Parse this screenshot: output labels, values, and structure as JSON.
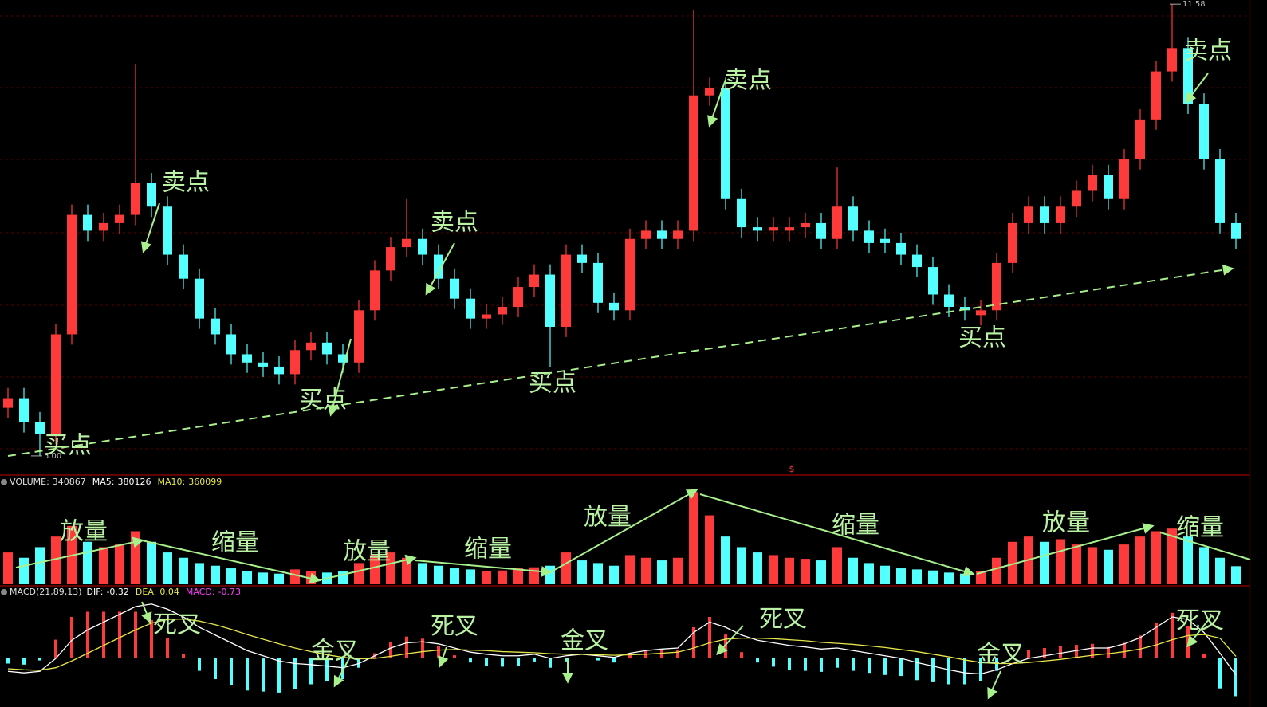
{
  "chart_data": [
    {
      "type": "candlestick",
      "ylim": [
        4.79,
        11.64
      ],
      "yticks": [
        {
          "value": 5,
          "label": "5.00"
        },
        11.58
      ],
      "up_color": "#ff3a3a",
      "down_color": "#54ffff",
      "open": [
        5.7,
        5.84,
        5.49,
        5.32,
        6.77,
        8.51,
        8.28,
        8.39,
        8.51,
        8.97,
        8.63,
        7.93,
        7.58,
        7.0,
        6.77,
        6.48,
        6.36,
        6.3,
        6.19,
        6.54,
        6.65,
        6.48,
        6.36,
        7.12,
        7.7,
        8.04,
        8.16,
        7.93,
        7.58,
        7.29,
        7.0,
        7.06,
        7.17,
        7.46,
        7.64,
        6.88,
        7.93,
        7.81,
        7.23,
        7.12,
        8.16,
        8.28,
        8.16,
        8.28,
        10.25,
        10.36,
        8.74,
        8.33,
        8.28,
        8.28,
        8.33,
        8.39,
        8.16,
        8.63,
        8.28,
        8.16,
        8.1,
        7.93,
        7.75,
        7.35,
        7.17,
        7.05,
        7.12,
        7.81,
        8.39,
        8.63,
        8.39,
        8.63,
        8.86,
        9.09,
        8.74,
        9.32,
        9.9,
        10.6,
        10.94,
        10.13,
        9.32,
        8.39
      ],
      "high": [
        5.99,
        5.99,
        5.64,
        6.92,
        8.66,
        8.66,
        8.54,
        8.66,
        10.71,
        9.12,
        8.78,
        8.08,
        7.73,
        7.15,
        6.92,
        6.63,
        6.51,
        6.45,
        6.69,
        6.8,
        6.8,
        6.63,
        7.27,
        7.85,
        8.19,
        8.74,
        8.31,
        8.08,
        7.73,
        7.44,
        7.21,
        7.32,
        7.61,
        7.79,
        7.79,
        8.08,
        8.08,
        7.96,
        7.38,
        8.31,
        8.43,
        8.43,
        8.43,
        11.49,
        10.51,
        10.51,
        8.89,
        8.48,
        8.48,
        8.48,
        8.54,
        8.54,
        9.2,
        8.78,
        8.43,
        8.31,
        8.25,
        8.08,
        7.9,
        7.5,
        7.32,
        7.27,
        7.96,
        8.54,
        8.78,
        8.78,
        8.78,
        9.01,
        9.24,
        9.24,
        9.47,
        10.05,
        10.75,
        11.58,
        11.09,
        10.28,
        9.47,
        8.54
      ],
      "low": [
        5.55,
        5.34,
        5.0,
        5.17,
        6.62,
        8.13,
        8.13,
        8.24,
        8.36,
        8.48,
        7.78,
        7.43,
        6.85,
        6.62,
        6.33,
        6.21,
        6.15,
        6.04,
        6.04,
        6.39,
        6.33,
        6.21,
        6.21,
        6.97,
        7.55,
        7.89,
        7.78,
        7.43,
        7.14,
        6.85,
        6.85,
        6.91,
        7.02,
        7.31,
        6.3,
        6.73,
        7.66,
        7.08,
        6.97,
        6.97,
        8.01,
        8.01,
        8.01,
        8.13,
        10.1,
        8.59,
        8.18,
        8.13,
        8.13,
        8.13,
        8.18,
        8.01,
        8.01,
        8.13,
        7.95,
        7.95,
        7.78,
        7.6,
        7.2,
        7.02,
        6.97,
        6.9,
        6.97,
        7.66,
        8.24,
        8.24,
        8.24,
        8.48,
        8.71,
        8.59,
        8.59,
        9.17,
        9.75,
        10.45,
        9.98,
        9.17,
        8.24,
        8.01
      ],
      "close": [
        5.84,
        5.49,
        5.32,
        6.77,
        8.51,
        8.28,
        8.39,
        8.51,
        8.97,
        8.63,
        7.93,
        7.58,
        7.0,
        6.77,
        6.48,
        6.36,
        6.3,
        6.19,
        6.54,
        6.65,
        6.48,
        6.36,
        7.12,
        7.7,
        8.04,
        8.16,
        7.93,
        7.58,
        7.29,
        7.0,
        7.06,
        7.17,
        7.46,
        7.64,
        6.88,
        7.93,
        7.81,
        7.23,
        7.12,
        8.16,
        8.28,
        8.16,
        8.28,
        10.25,
        10.36,
        8.74,
        8.33,
        8.28,
        8.33,
        8.33,
        8.39,
        8.16,
        8.63,
        8.28,
        8.1,
        8.1,
        7.93,
        7.75,
        7.35,
        7.17,
        7.12,
        7.12,
        7.81,
        8.39,
        8.63,
        8.39,
        8.63,
        8.86,
        9.09,
        8.74,
        9.32,
        9.9,
        10.6,
        10.94,
        10.13,
        9.32,
        8.39,
        8.16
      ],
      "annotations": [
        "买点",
        "卖点",
        "买点",
        "卖点",
        "买点",
        "卖点",
        "买点",
        "卖点"
      ]
    },
    {
      "type": "bar",
      "ylim": [
        0,
        2000000
      ],
      "indicators": [
        {
          "name": "VOLUME:",
          "value": 340867,
          "color": "#e0e0e0"
        },
        {
          "name": "MA5:",
          "value": 380126,
          "color": "#ffffff"
        },
        {
          "name": "MA10:",
          "value": 360099,
          "color": "#e6e64c"
        }
      ],
      "values": [
        600000,
        500000,
        700000,
        900000,
        1100000,
        800000,
        700000,
        750000,
        1000000,
        800000,
        600000,
        500000,
        400000,
        350000,
        300000,
        250000,
        220000,
        200000,
        280000,
        250000,
        220000,
        240000,
        400000,
        550000,
        600000,
        500000,
        400000,
        350000,
        300000,
        280000,
        250000,
        260000,
        300000,
        320000,
        350000,
        600000,
        450000,
        400000,
        350000,
        550000,
        500000,
        450000,
        500000,
        1740000,
        1300000,
        900000,
        700000,
        600000,
        550000,
        500000,
        480000,
        450000,
        700000,
        500000,
        400000,
        350000,
        300000,
        280000,
        260000,
        220000,
        200000,
        250000,
        500000,
        800000,
        900000,
        800000,
        850000,
        750000,
        700000,
        650000,
        750000,
        900000,
        1000000,
        1050000,
        900000,
        700000,
        500000,
        340867
      ],
      "annotations": [
        "放量",
        "缩量",
        "放量",
        "缩量",
        "放量",
        "缩量",
        "放量",
        "缩量"
      ]
    },
    {
      "type": "macd",
      "title": "MACD(21,89,13)",
      "ylim": [
        -0.8,
        1.2
      ],
      "pos_color": "#ff3a3a",
      "neg_color": "#54ffff",
      "indicators": [
        {
          "name": "DIF:",
          "value": -0.32,
          "color": "#ffffff"
        },
        {
          "name": "DEA:",
          "value": 0.04,
          "color": "#e6e64c"
        },
        {
          "name": "MACD:",
          "value": -0.73,
          "color": "#ff40ff"
        }
      ],
      "series": [
        {
          "color": "#ffffff",
          "values": [
            -0.25,
            -0.28,
            -0.25,
            0.0,
            0.35,
            0.55,
            0.7,
            0.85,
            1.0,
            1.05,
            0.95,
            0.8,
            0.6,
            0.45,
            0.3,
            0.15,
            0.05,
            -0.05,
            -0.1,
            -0.12,
            -0.15,
            -0.18,
            -0.1,
            0.05,
            0.2,
            0.3,
            0.32,
            0.28,
            0.2,
            0.12,
            0.08,
            0.05,
            0.05,
            0.08,
            0.0,
            0.05,
            0.08,
            0.05,
            0.02,
            0.1,
            0.15,
            0.18,
            0.2,
            0.5,
            0.7,
            0.6,
            0.45,
            0.35,
            0.3,
            0.25,
            0.22,
            0.18,
            0.2,
            0.15,
            0.1,
            0.05,
            0.0,
            -0.08,
            -0.15,
            -0.22,
            -0.28,
            -0.3,
            -0.22,
            -0.1,
            0.0,
            0.05,
            0.1,
            0.15,
            0.2,
            0.2,
            0.28,
            0.4,
            0.6,
            0.8,
            0.75,
            0.5,
            0.1,
            -0.32
          ]
        },
        {
          "color": "#e6e64c",
          "values": [
            -0.2,
            -0.22,
            -0.23,
            -0.18,
            -0.05,
            0.1,
            0.25,
            0.4,
            0.55,
            0.68,
            0.75,
            0.76,
            0.72,
            0.65,
            0.56,
            0.46,
            0.37,
            0.28,
            0.2,
            0.13,
            0.07,
            0.02,
            -0.01,
            0.0,
            0.04,
            0.09,
            0.13,
            0.16,
            0.17,
            0.16,
            0.15,
            0.13,
            0.12,
            0.11,
            0.09,
            0.08,
            0.08,
            0.07,
            0.06,
            0.07,
            0.08,
            0.1,
            0.12,
            0.2,
            0.3,
            0.37,
            0.39,
            0.39,
            0.38,
            0.36,
            0.34,
            0.31,
            0.29,
            0.27,
            0.24,
            0.21,
            0.17,
            0.13,
            0.08,
            0.03,
            -0.03,
            -0.08,
            -0.1,
            -0.1,
            -0.08,
            -0.05,
            -0.02,
            0.02,
            0.06,
            0.09,
            0.13,
            0.18,
            0.26,
            0.36,
            0.44,
            0.46,
            0.39,
            0.04
          ]
        }
      ],
      "histogram": [
        -0.1,
        -0.12,
        -0.04,
        0.36,
        0.8,
        0.9,
        0.9,
        0.9,
        0.9,
        0.74,
        0.4,
        0.08,
        -0.24,
        -0.4,
        -0.52,
        -0.62,
        -0.64,
        -0.66,
        -0.6,
        -0.5,
        -0.44,
        -0.4,
        -0.18,
        0.1,
        0.32,
        0.42,
        0.38,
        0.24,
        0.06,
        -0.08,
        -0.14,
        -0.16,
        -0.14,
        -0.06,
        -0.18,
        -0.06,
        0.0,
        -0.04,
        -0.08,
        0.06,
        0.14,
        0.16,
        0.16,
        0.6,
        0.8,
        0.46,
        0.12,
        -0.08,
        -0.16,
        -0.22,
        -0.24,
        -0.26,
        -0.18,
        -0.24,
        -0.28,
        -0.32,
        -0.34,
        -0.42,
        -0.46,
        -0.5,
        -0.5,
        -0.44,
        -0.24,
        0.0,
        0.16,
        0.2,
        0.24,
        0.26,
        0.28,
        0.22,
        0.3,
        0.44,
        0.68,
        0.88,
        0.62,
        0.08,
        -0.58,
        -0.73
      ],
      "annotations": [
        "死叉",
        "金叉",
        "死叉",
        "金叉",
        "死叉",
        "金叉",
        "死叉"
      ]
    }
  ],
  "marker": "$"
}
